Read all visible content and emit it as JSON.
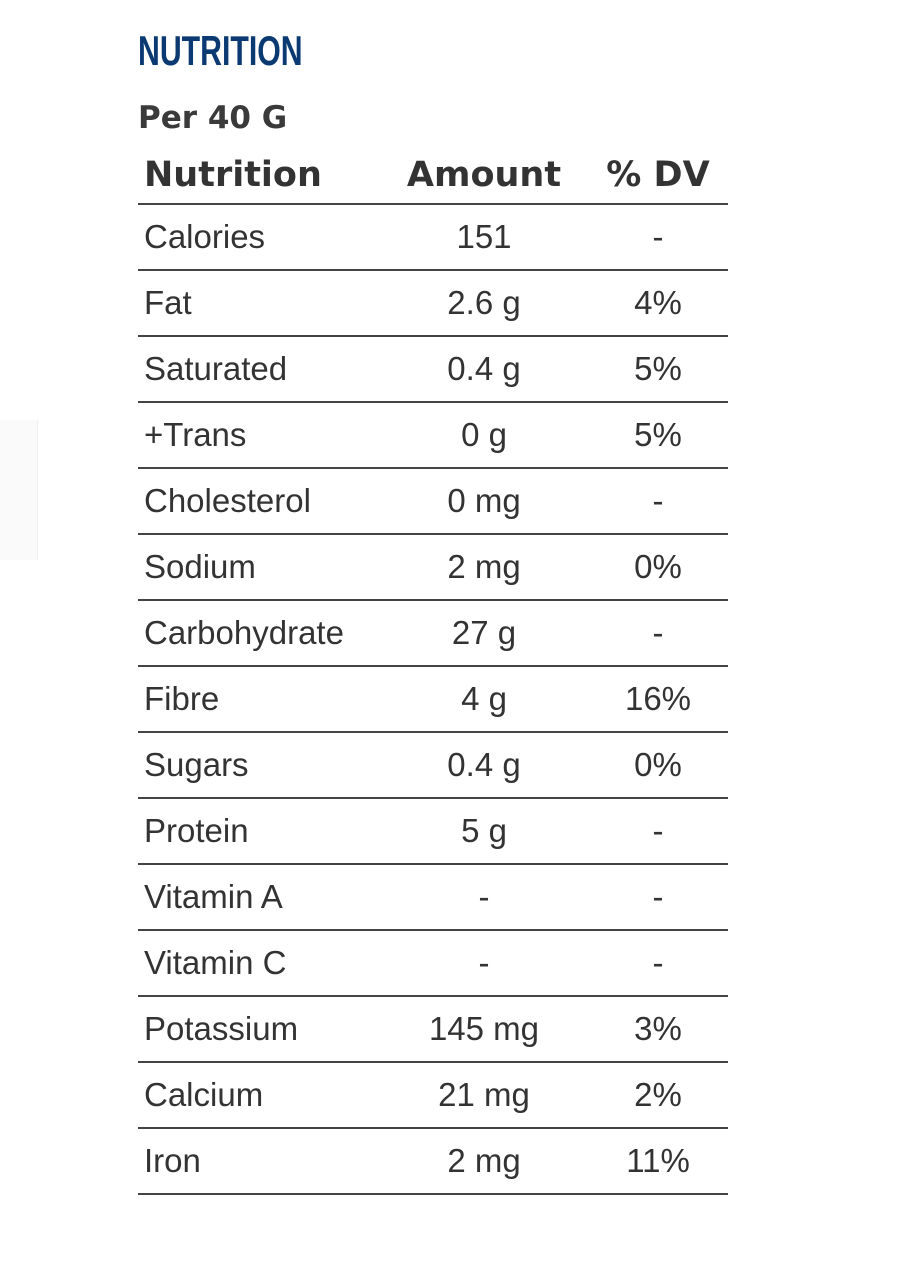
{
  "title": "NUTRITION",
  "serving": "Per 40 G",
  "table": {
    "headers": [
      "Nutrition",
      "Amount",
      "% DV"
    ],
    "rows": [
      [
        "Calories",
        "151",
        "-"
      ],
      [
        "Fat",
        "2.6 g",
        "4%"
      ],
      [
        "Saturated",
        "0.4 g",
        "5%"
      ],
      [
        "+Trans",
        "0 g",
        "5%"
      ],
      [
        "Cholesterol",
        "0 mg",
        "-"
      ],
      [
        "Sodium",
        "2 mg",
        "0%"
      ],
      [
        "Carbohydrate",
        "27 g",
        "-"
      ],
      [
        "Fibre",
        "4 g",
        "16%"
      ],
      [
        "Sugars",
        "0.4 g",
        "0%"
      ],
      [
        "Protein",
        "5 g",
        "-"
      ],
      [
        "Vitamin A",
        "-",
        "-"
      ],
      [
        "Vitamin C",
        "-",
        "-"
      ],
      [
        "Potassium",
        "145 mg",
        "3%"
      ],
      [
        "Calcium",
        "21 mg",
        "2%"
      ],
      [
        "Iron",
        "2 mg",
        "11%"
      ]
    ]
  },
  "colors": {
    "title": "#0b3a72",
    "text": "#333333"
  }
}
